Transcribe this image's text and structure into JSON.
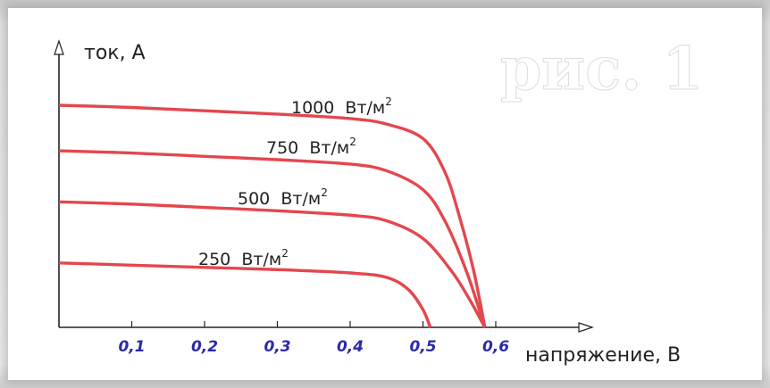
{
  "figure_label": "рис. 1",
  "chart_data": {
    "type": "line",
    "title": "",
    "xlabel": "напряжение, В",
    "ylabel": "ток, А",
    "xticks": [
      "0,1",
      "0,2",
      "0,3",
      "0,4",
      "0,5",
      "0,6"
    ],
    "xlim": [
      0,
      0.65
    ],
    "grid": false,
    "legend": "inline labels above each curve",
    "series": [
      {
        "name": "1000 Вт/м2",
        "label_value": "1000",
        "label_unit": "Вт/м",
        "label_power": "2",
        "x": [
          0,
          0.1,
          0.2,
          0.3,
          0.4,
          0.45,
          0.5,
          0.53,
          0.55,
          0.57,
          0.585
        ],
        "y": [
          1.0,
          0.99,
          0.975,
          0.96,
          0.94,
          0.915,
          0.85,
          0.7,
          0.5,
          0.25,
          0
        ]
      },
      {
        "name": "750 Вт/м2",
        "label_value": "750",
        "label_unit": "Вт/м",
        "label_power": "2",
        "x": [
          0,
          0.1,
          0.2,
          0.3,
          0.4,
          0.45,
          0.5,
          0.53,
          0.56,
          0.585
        ],
        "y": [
          0.795,
          0.785,
          0.77,
          0.755,
          0.735,
          0.705,
          0.62,
          0.48,
          0.25,
          0
        ]
      },
      {
        "name": "500 Вт/м2",
        "label_value": "500",
        "label_unit": "Вт/м",
        "label_power": "2",
        "x": [
          0,
          0.1,
          0.2,
          0.3,
          0.4,
          0.45,
          0.5,
          0.54,
          0.565,
          0.585
        ],
        "y": [
          0.565,
          0.555,
          0.54,
          0.525,
          0.505,
          0.48,
          0.4,
          0.25,
          0.12,
          0
        ]
      },
      {
        "name": "250 Вт/м2",
        "label_value": "250",
        "label_unit": "Вт/м",
        "label_power": "2",
        "x": [
          0,
          0.1,
          0.2,
          0.3,
          0.4,
          0.45,
          0.48,
          0.5,
          0.51
        ],
        "y": [
          0.29,
          0.28,
          0.27,
          0.26,
          0.245,
          0.225,
          0.17,
          0.08,
          0
        ]
      }
    ],
    "colors": {
      "curve": "#e3474d",
      "tick_label": "#2a2aa8",
      "axis": "#222222"
    }
  }
}
